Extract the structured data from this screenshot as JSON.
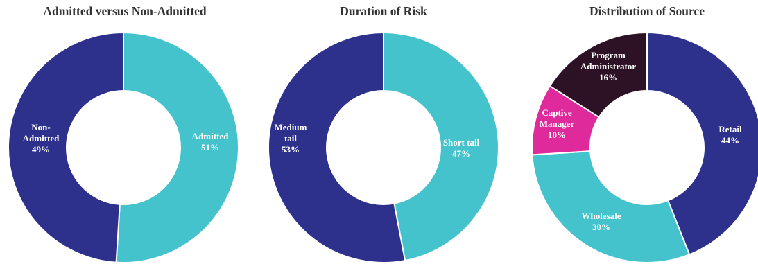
{
  "chart_data": [
    {
      "type": "pie",
      "title": "Admitted versus Non-Admitted",
      "slices": [
        {
          "label": [
            "Admitted",
            "51%"
          ],
          "value": 51,
          "color": "#45c3cc"
        },
        {
          "label": [
            "Non-",
            "Admitted",
            "49%"
          ],
          "value": 49,
          "color": "#2e318c"
        }
      ]
    },
    {
      "type": "pie",
      "title": "Duration of Risk",
      "slices": [
        {
          "label": [
            "Short tail",
            "47%"
          ],
          "value": 47,
          "color": "#45c3cc"
        },
        {
          "label": [
            "Medium",
            "tail",
            "53%"
          ],
          "value": 53,
          "color": "#2e318c"
        }
      ]
    },
    {
      "type": "pie",
      "title": "Distribution of Source",
      "slices": [
        {
          "label": [
            "Retail",
            "44%"
          ],
          "value": 44,
          "color": "#2e318c"
        },
        {
          "label": [
            "Wholesale",
            "30%"
          ],
          "value": 30,
          "color": "#45c3cc"
        },
        {
          "label": [
            "Captive",
            "Manager",
            "10%"
          ],
          "value": 10,
          "color": "#de2a9a"
        },
        {
          "label": [
            "Program",
            "Administrator",
            "16%"
          ],
          "value": 16,
          "color": "#2d1226"
        }
      ]
    }
  ]
}
